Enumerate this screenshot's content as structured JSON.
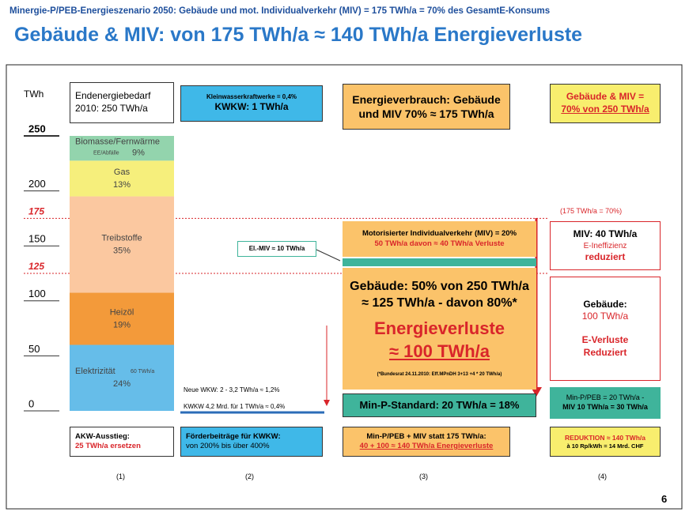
{
  "chart_data": {
    "type": "stacked-column",
    "supertitle": "Minergie-P/PEB-Energieszenario 2050: Gebäude und mot. Individualverkehr (MIV) = 175 TWh/a = 70% des GesamtE-Konsums",
    "title": "Gebäude & MIV: von 175 TWh/a ≈ 140 TWh/a Energieverluste",
    "ylabel": "TWh",
    "ylim": [
      0,
      250
    ],
    "yticks": [
      0,
      50,
      100,
      150,
      200,
      250
    ],
    "markers": [
      {
        "value": 175,
        "label": "175",
        "color": "#d9252a"
      },
      {
        "value": 125,
        "label": "125",
        "color": "#d9252a"
      }
    ],
    "segments": [
      {
        "name": "Elektrizität",
        "note": "60 TWh/a",
        "pct": "24%",
        "values": 60,
        "color": "#66bde9"
      },
      {
        "name": "Heizöl",
        "pct": "19%",
        "values": 47.5,
        "color": "#f39a3a"
      },
      {
        "name": "Treibstoffe",
        "pct": "35%",
        "values": 87.5,
        "color": "#fbc8a0"
      },
      {
        "name": "Gas",
        "pct": "13%",
        "values": 32.5,
        "color": "#f6ef7c"
      },
      {
        "name": "Biomasse/Fernwärme",
        "note": "EE/Abfälle",
        "pct": "9%",
        "values": 22.5,
        "color": "#93d4ad"
      }
    ],
    "column_header": [
      "Endenergiebedarf",
      "2010: 250 TWh/a"
    ]
  },
  "boxes": {
    "kwkw": [
      "Kleinwasserkraftwerke = 0,4%",
      "KWKW: 1 TWh/a"
    ],
    "verbrauch": [
      "Energieverbrauch: Gebäude",
      "und MIV 70% ≈ 175 TWh/a"
    ],
    "anteil": [
      "Gebäude & MIV =",
      "70% von 250 TWh/a"
    ],
    "anteil_note": "(175 TWh/a = 70%)",
    "miv": [
      "Motorisierter Individualverkehr (MIV) = 20%",
      "50 TWh/a davon ≈ 40 TWh/a Verluste"
    ],
    "el_miv": "El.-MIV ≈ 10 TWh/a",
    "gebaeude": [
      "Gebäude: 50% von 250 TWh/a",
      "≈ 125 TWh/a - davon 80%*",
      "Energieverluste",
      "≈ 100 TWh/a",
      "(*Bundesrat 24.11.2010: Eff.MPnDH 3+13 +4 * 20 TWh/a)"
    ],
    "minp": "Min-P-Standard:  20 TWh/a = 18%",
    "r_miv": [
      "MIV: 40 TWh/a",
      "E-Ineffizienz",
      "reduziert"
    ],
    "r_geb": [
      "Gebäude:",
      "100 TWh/a",
      "E-Verluste",
      "Reduziert"
    ],
    "r_minp": [
      "Min-P/PEB = 20 TWh/a -",
      "MIV 10  TWh/a = 30 TWh/a"
    ],
    "wkw": [
      "Neue WKW: 2 - 3,2 TWh/a  ≈ 1,2%",
      "KWKW 4,2 Mrd. für 1 TWh/a ≈ 0,4%"
    ],
    "b1": [
      "AKW-Ausstieg:",
      "25 TWh/a ersetzen"
    ],
    "b2": [
      "Förderbeiträge  für KWKW:",
      "von 200% bis über 400%"
    ],
    "b3": [
      "Min-P/PEB + MIV statt 175 TWh/a:",
      "40 + 100 ≈  140 TWh/a Energieverluste"
    ],
    "b4": [
      "REDUKTION ≈ 140 TWh/a",
      "à 10 Rp/kWh = 14 Mrd. CHF"
    ]
  },
  "columns": [
    "(1)",
    "(2)",
    "(3)",
    "(4)"
  ],
  "page": "6"
}
